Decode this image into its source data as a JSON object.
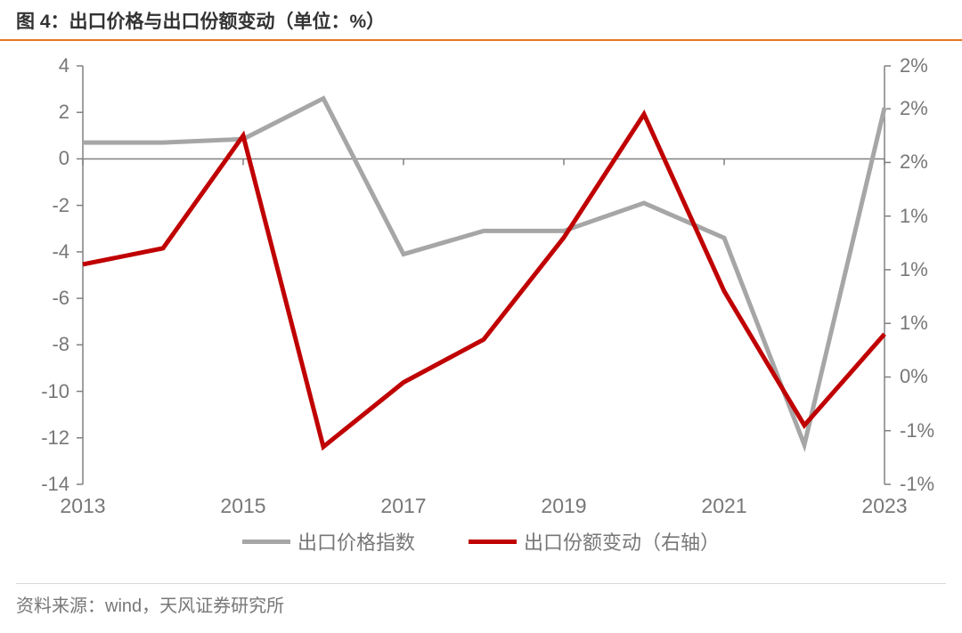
{
  "title": "图 4：出口价格与出口份额变动（单位：%）",
  "source": "资料来源：wind，天风证券研究所",
  "chart": {
    "type": "dual-axis-line",
    "x": {
      "values": [
        2013,
        2014,
        2015,
        2016,
        2017,
        2018,
        2019,
        2020,
        2021,
        2022,
        2023
      ],
      "tick_values": [
        2013,
        2015,
        2017,
        2019,
        2021,
        2023
      ],
      "xlim": [
        2013,
        2023
      ]
    },
    "left_axis": {
      "ylim": [
        -14,
        4
      ],
      "tick_values": [
        -14,
        -12,
        -10,
        -8,
        -6,
        -4,
        -2,
        0,
        2,
        4
      ],
      "tick_labels": [
        "-14",
        "-12",
        "-10",
        "-8",
        "-6",
        "-4",
        "-2",
        "0",
        "2",
        "4"
      ]
    },
    "right_axis": {
      "ylim": [
        -1.5,
        2.4
      ],
      "tick_values": [
        -1.5,
        -1.0,
        -0.5,
        0.0,
        0.5,
        1.0,
        1.5,
        2.0,
        2.4
      ],
      "tick_labels": [
        "-1%",
        "-1%",
        "0%",
        "1%",
        "1%",
        "1%",
        "2%",
        "2%",
        "2%"
      ]
    },
    "series": [
      {
        "name": "出口价格指数",
        "axis": "left",
        "color": "#a6a6a6",
        "line_width": 5,
        "data": [
          0.7,
          0.7,
          0.85,
          2.6,
          -4.1,
          -3.1,
          -3.1,
          -1.9,
          -3.4,
          -12.3,
          2.2
        ]
      },
      {
        "name": "出口份额变动（右轴）",
        "axis": "right",
        "color": "#c00000",
        "line_width": 5,
        "data": [
          0.55,
          0.7,
          1.75,
          -1.15,
          -0.55,
          -0.15,
          0.8,
          1.95,
          0.3,
          -0.95,
          -0.1
        ]
      }
    ],
    "axis_color": "#808080",
    "tick_font_size": 22,
    "legend_font_size": 22,
    "background_color": "#ffffff"
  },
  "title_border_color": "#e87722"
}
